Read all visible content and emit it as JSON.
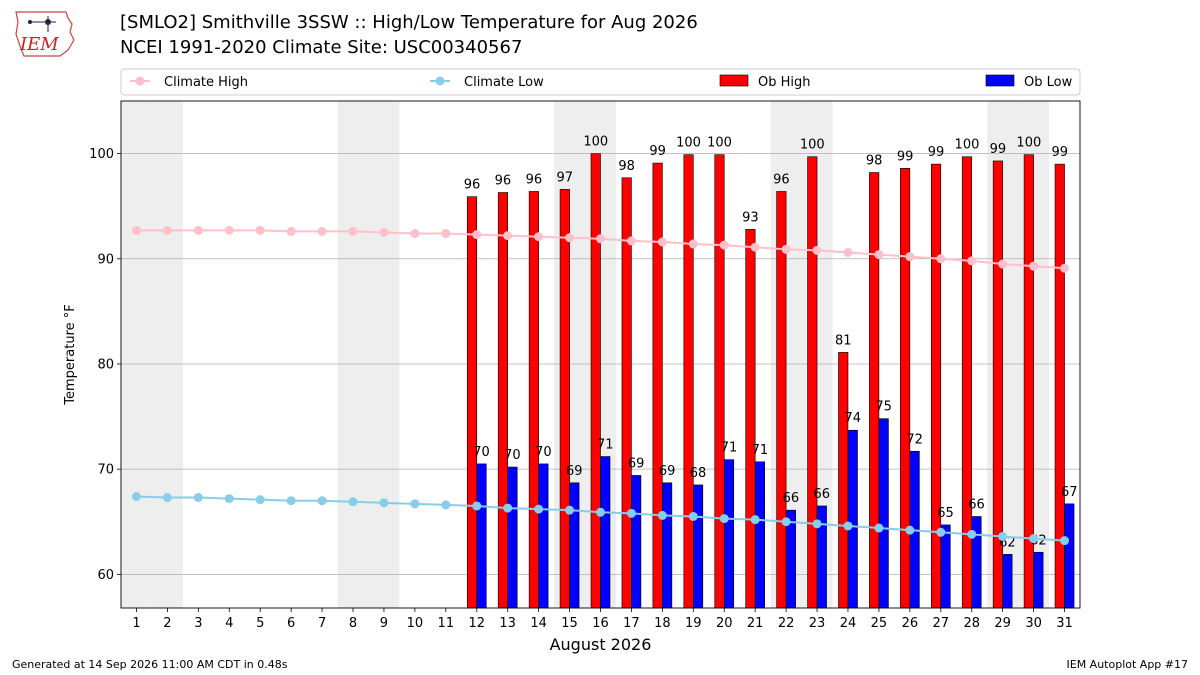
{
  "header": {
    "title_line1": "[SMLO2] Smithville 3SSW :: High/Low Temperature for Aug 2026",
    "title_line2": "NCEI 1991-2020 Climate Site: USC00340567",
    "logo_text": "IEM"
  },
  "footer": {
    "left": "Generated at 14 Sep 2026 11:00 AM CDT in 0.48s",
    "right": "IEM Autoplot App #17"
  },
  "chart_data": {
    "type": "bar",
    "xlabel": "August 2026",
    "ylabel": "Temperature °F",
    "ylim": [
      56.8,
      105
    ],
    "yticks": [
      60,
      70,
      80,
      90,
      100
    ],
    "grid": "horizontal",
    "legend_placement": "top",
    "categories": [
      1,
      2,
      3,
      4,
      5,
      6,
      7,
      8,
      9,
      10,
      11,
      12,
      13,
      14,
      15,
      16,
      17,
      18,
      19,
      20,
      21,
      22,
      23,
      24,
      25,
      26,
      27,
      28,
      29,
      30,
      31
    ],
    "weekend_shaded_days": [
      1,
      2,
      8,
      9,
      15,
      16,
      22,
      23,
      29,
      30
    ],
    "series": [
      {
        "name": "Climate High",
        "kind": "line",
        "color": "#ffc0cb",
        "values": [
          92.7,
          92.7,
          92.7,
          92.7,
          92.7,
          92.6,
          92.6,
          92.6,
          92.5,
          92.4,
          92.4,
          92.3,
          92.2,
          92.1,
          92.0,
          91.9,
          91.7,
          91.6,
          91.4,
          91.3,
          91.1,
          90.9,
          90.8,
          90.6,
          90.4,
          90.2,
          90.0,
          89.8,
          89.5,
          89.3,
          89.1
        ]
      },
      {
        "name": "Climate Low",
        "kind": "line",
        "color": "#87ceeb",
        "values": [
          67.4,
          67.3,
          67.3,
          67.2,
          67.1,
          67.0,
          67.0,
          66.9,
          66.8,
          66.7,
          66.6,
          66.5,
          66.3,
          66.2,
          66.1,
          65.9,
          65.8,
          65.6,
          65.5,
          65.3,
          65.2,
          65.0,
          64.8,
          64.6,
          64.4,
          64.2,
          64.0,
          63.8,
          63.6,
          63.4,
          63.2
        ]
      },
      {
        "name": "Ob High",
        "kind": "bar",
        "color": "#ff0000",
        "values": [
          null,
          null,
          null,
          null,
          null,
          null,
          null,
          null,
          null,
          null,
          null,
          96,
          96,
          96,
          97,
          100,
          98,
          99,
          100,
          100,
          93,
          96,
          100,
          81,
          98,
          99,
          99,
          100,
          99,
          100,
          99
        ],
        "plotted": [
          null,
          null,
          null,
          null,
          null,
          null,
          null,
          null,
          null,
          null,
          null,
          95.9,
          96.3,
          96.4,
          96.6,
          100.0,
          97.7,
          99.1,
          99.9,
          99.9,
          92.8,
          96.4,
          99.7,
          81.1,
          98.2,
          98.6,
          99.0,
          99.7,
          99.3,
          99.9,
          99.0
        ]
      },
      {
        "name": "Ob Low",
        "kind": "bar",
        "color": "#0000ff",
        "values": [
          null,
          null,
          null,
          null,
          null,
          null,
          null,
          null,
          null,
          null,
          null,
          70,
          70,
          70,
          69,
          71,
          69,
          69,
          68,
          71,
          71,
          66,
          66,
          74,
          75,
          72,
          65,
          66,
          62,
          62,
          67
        ],
        "plotted": [
          null,
          null,
          null,
          null,
          null,
          null,
          null,
          null,
          null,
          null,
          null,
          70.5,
          70.2,
          70.5,
          68.7,
          71.2,
          69.4,
          68.7,
          68.5,
          70.9,
          70.7,
          66.1,
          66.5,
          73.7,
          74.8,
          71.7,
          64.7,
          65.5,
          61.9,
          62.1,
          66.7
        ]
      }
    ]
  }
}
